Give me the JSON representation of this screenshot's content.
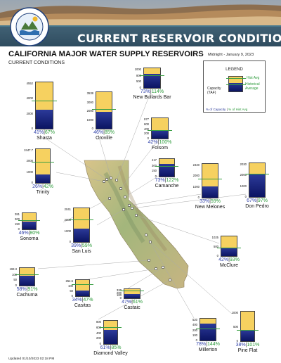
{
  "banner": {
    "title": "CURRENT RESERVOIR CONDITIONS",
    "seal_text": "DEPARTMENT OF WATER RESOURCES · STATE OF CALIFORNIA"
  },
  "header": {
    "title": "CALIFORNIA MAJOR WATER SUPPLY RESERVOIRS",
    "subtitle": "CURRENT CONDITIONS",
    "date": "Midnight - January 9, 2023"
  },
  "legend": {
    "title": "LEGEND",
    "capacity_label": "Capacity (TAF)",
    "hist_avg_label": "Hist Avg",
    "historical_average_label": "Historical Average",
    "pct_capacity_label": "% of Capacity",
    "pct_hist_label": "% of Hist Avg",
    "separator": "|"
  },
  "colors": {
    "full": "#f6d160",
    "storage": "#1b2a86",
    "hist_avg": "#3aa044",
    "pct_capacity": "#3344aa",
    "pct_hist": "#2c9a3a"
  },
  "reservoirs": [
    {
      "id": "shasta",
      "name": "Shasta",
      "capacity": "4552",
      "ticks": [
        "4000",
        "2000",
        "0"
      ],
      "storage_frac": 0.41,
      "hist_frac": 0.61,
      "pct_capacity": "41%",
      "pct_hist": "67%"
    },
    {
      "id": "oroville",
      "name": "Oroville",
      "capacity": "3538",
      "ticks": [
        "3000",
        "2000",
        "1000",
        "0"
      ],
      "storage_frac": 0.46,
      "hist_frac": 0.54,
      "pct_capacity": "46%",
      "pct_hist": "85%"
    },
    {
      "id": "new-bullards-bar",
      "name": "New Bullards Bar",
      "capacity": "1000",
      "ticks": [
        "800",
        "500",
        "0"
      ],
      "storage_frac": 0.73,
      "hist_frac": 0.64,
      "pct_capacity": "73%",
      "pct_hist": "114%"
    },
    {
      "id": "folsom",
      "name": "Folsom",
      "capacity": "977",
      "ticks": [
        "600",
        "400",
        "200",
        "0"
      ],
      "storage_frac": 0.42,
      "hist_frac": 0.42,
      "pct_capacity": "42%",
      "pct_hist": "100%"
    },
    {
      "id": "trinity",
      "name": "Trinity",
      "capacity": "2447.7",
      "ticks": [
        "2000",
        "1000",
        "0"
      ],
      "storage_frac": 0.26,
      "hist_frac": 0.62,
      "pct_capacity": "26%",
      "pct_hist": "42%"
    },
    {
      "id": "camanche",
      "name": "Camanche",
      "capacity": "417",
      "ticks": [
        "300",
        "150",
        "0"
      ],
      "storage_frac": 0.73,
      "hist_frac": 0.6,
      "pct_capacity": "73%",
      "pct_hist": "122%"
    },
    {
      "id": "new-melones",
      "name": "New Melones",
      "capacity": "2420",
      "ticks": [
        "2000",
        "1000",
        "0"
      ],
      "storage_frac": 0.33,
      "hist_frac": 0.56,
      "pct_capacity": "33%",
      "pct_hist": "59%"
    },
    {
      "id": "don-pedro",
      "name": "Don Pedro",
      "capacity": "2030",
      "ticks": [
        "2000",
        "1000",
        "0"
      ],
      "storage_frac": 0.67,
      "hist_frac": 0.69,
      "pct_capacity": "67%",
      "pct_hist": "97%"
    },
    {
      "id": "sonoma",
      "name": "Sonoma",
      "capacity": "381",
      "ticks": [
        "300",
        "150",
        "0"
      ],
      "storage_frac": 0.46,
      "hist_frac": 0.58,
      "pct_capacity": "46%",
      "pct_hist": "80%"
    },
    {
      "id": "san-luis",
      "name": "San Luis",
      "capacity": "2041",
      "ticks": [
        "2000",
        "1000",
        "0"
      ],
      "storage_frac": 0.39,
      "hist_frac": 0.66,
      "pct_capacity": "39%",
      "pct_hist": "59%"
    },
    {
      "id": "mcclure",
      "name": "McClure",
      "capacity": "1025",
      "ticks": [
        "500",
        "0"
      ],
      "storage_frac": 0.42,
      "hist_frac": 0.45,
      "pct_capacity": "42%",
      "pct_hist": "93%"
    },
    {
      "id": "cachuma",
      "name": "Cachuma",
      "capacity": "193.3",
      "ticks": [
        "100",
        "50",
        "0"
      ],
      "storage_frac": 0.58,
      "hist_frac": 0.64,
      "pct_capacity": "58%",
      "pct_hist": "91%"
    },
    {
      "id": "casitas",
      "name": "Casitas",
      "capacity": "254.5",
      "ticks": [
        "100",
        "50",
        "0"
      ],
      "storage_frac": 0.34,
      "hist_frac": 0.72,
      "pct_capacity": "34%",
      "pct_hist": "47%"
    },
    {
      "id": "castaic",
      "name": "Castaic",
      "capacity": "320",
      "ticks": [
        "200",
        "100",
        "0"
      ],
      "storage_frac": 0.47,
      "hist_frac": 0.77,
      "pct_capacity": "47%",
      "pct_hist": "61%"
    },
    {
      "id": "diamond-valley",
      "name": "Diamond Valley",
      "capacity": "800",
      "ticks": [
        "600",
        "400",
        "200",
        "0"
      ],
      "storage_frac": 0.61,
      "hist_frac": 0.72,
      "pct_capacity": "61%",
      "pct_hist": "85%"
    },
    {
      "id": "millerton",
      "name": "Millerton",
      "capacity": "520",
      "ticks": [
        "400",
        "200",
        "100",
        "0"
      ],
      "storage_frac": 0.78,
      "hist_frac": 0.54,
      "pct_capacity": "78%",
      "pct_hist": "144%"
    },
    {
      "id": "pine-flat",
      "name": "Pine Flat",
      "capacity": "1000",
      "ticks": [
        "500",
        "0"
      ],
      "storage_frac": 0.38,
      "hist_frac": 0.38,
      "pct_capacity": "38%",
      "pct_hist": "101%"
    }
  ],
  "footer": {
    "updated": "Updated 01/10/2023 02:18 PM"
  }
}
